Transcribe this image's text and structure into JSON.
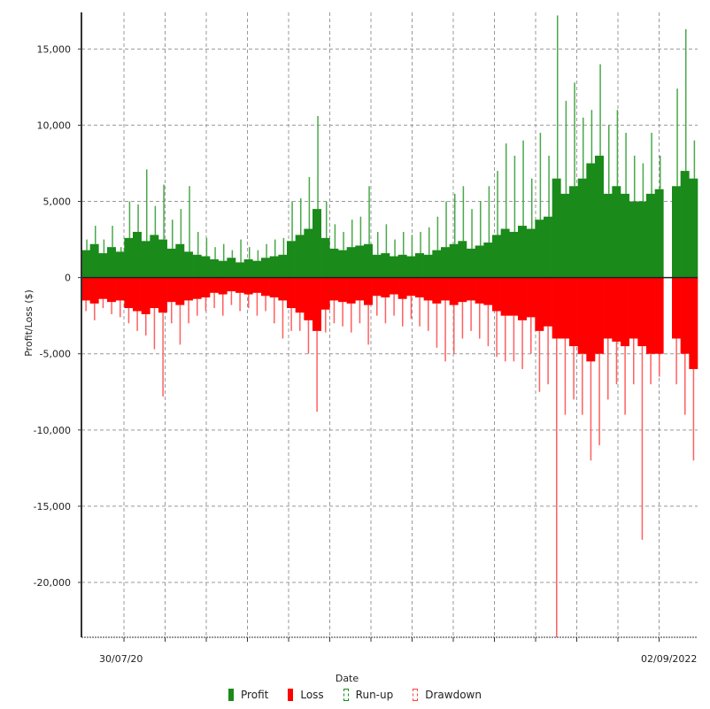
{
  "chart_data": {
    "type": "bar",
    "title": "",
    "xlabel": "Date",
    "ylabel": "Profit/Loss ($)",
    "ylim": [
      -23600,
      17400
    ],
    "yticks": [
      15000,
      10000,
      5000,
      0,
      -5000,
      -10000,
      -15000,
      -20000
    ],
    "ytick_labels": [
      "15,000",
      "10,000",
      "5,000",
      "0",
      "-5,000",
      "-10,000",
      "-15,000",
      "-20,000"
    ],
    "xtick_labels_visible": [
      "30/07/20",
      "02/09/2022"
    ],
    "grid": true,
    "legend_position": "bottom",
    "colors": {
      "profit": "#1a8a1a",
      "runup": "#4aa84a",
      "loss": "#ff0000",
      "drawdown": "#ff6060"
    },
    "series": [
      {
        "name": "Profit",
        "values": [
          1800,
          2200,
          1600,
          2000,
          1700,
          2600,
          3000,
          2400,
          2800,
          2500,
          1900,
          2200,
          1700,
          1500,
          1400,
          1200,
          1100,
          1300,
          1000,
          1200,
          1100,
          1300,
          1400,
          1500,
          2400,
          2800,
          3200,
          4500,
          2600,
          1900,
          1800,
          2000,
          2100,
          2200,
          1500,
          1600,
          1400,
          1500,
          1400,
          1600,
          1500,
          1800,
          2000,
          2200,
          2400,
          1900,
          2100,
          2300,
          2800,
          3200,
          3000,
          3400,
          3200,
          3800,
          4000,
          6500,
          5500,
          6000,
          6500,
          7500,
          8000,
          5500,
          6000,
          5500,
          5000,
          5000,
          5500,
          5800,
          0,
          6000,
          7000,
          6500
        ]
      },
      {
        "name": "Loss",
        "values": [
          -1500,
          -1700,
          -1400,
          -1600,
          -1500,
          -2000,
          -2200,
          -2400,
          -2000,
          -2300,
          -1600,
          -1800,
          -1500,
          -1400,
          -1300,
          -1000,
          -1100,
          -900,
          -1000,
          -1100,
          -1000,
          -1200,
          -1300,
          -1500,
          -2000,
          -2300,
          -2800,
          -3500,
          -2100,
          -1500,
          -1600,
          -1700,
          -1500,
          -1800,
          -1200,
          -1300,
          -1100,
          -1400,
          -1200,
          -1300,
          -1500,
          -1700,
          -1500,
          -1800,
          -1600,
          -1500,
          -1700,
          -1800,
          -2200,
          -2500,
          -2500,
          -2800,
          -2600,
          -3500,
          -3200,
          -4000,
          -4000,
          -4500,
          -5000,
          -5500,
          -5000,
          -4000,
          -4200,
          -4500,
          -4000,
          -4500,
          -5000,
          -5000,
          0,
          -4000,
          -5000,
          -6000
        ]
      },
      {
        "name": "Run-up",
        "values": [
          2500,
          3400,
          2500,
          3400,
          2000,
          5000,
          4800,
          7100,
          4700,
          6100,
          3800,
          4500,
          6000,
          3000,
          2600,
          2000,
          2200,
          1800,
          2500,
          2000,
          1800,
          2200,
          2500,
          2600,
          5000,
          5200,
          6600,
          10600,
          5000,
          3500,
          3000,
          3800,
          4000,
          6000,
          3000,
          3500,
          2500,
          3000,
          2800,
          3000,
          3300,
          4000,
          5000,
          5500,
          6000,
          4500,
          5000,
          6000,
          7000,
          8800,
          8000,
          9000,
          6500,
          9500,
          8000,
          17200,
          11600,
          12800,
          10500,
          11000,
          14000,
          10000,
          11000,
          9500,
          8000,
          7500,
          9500,
          8000,
          0,
          12400,
          16300,
          9000
        ]
      },
      {
        "name": "Drawdown",
        "values": [
          -2200,
          -2800,
          -2000,
          -2400,
          -2600,
          -3000,
          -3500,
          -3800,
          -4700,
          -7800,
          -3000,
          -4400,
          -3000,
          -2500,
          -2200,
          -2000,
          -2500,
          -1800,
          -2200,
          -2000,
          -2500,
          -2200,
          -3000,
          -4000,
          -3500,
          -3500,
          -5000,
          -8800,
          -3600,
          -3000,
          -3200,
          -3600,
          -3000,
          -4400,
          -2500,
          -3000,
          -2500,
          -3200,
          -2700,
          -3200,
          -3500,
          -4600,
          -5500,
          -5000,
          -4000,
          -3500,
          -4000,
          -4500,
          -5200,
          -5500,
          -5500,
          -6000,
          -5000,
          -7500,
          -7000,
          -23600,
          -9000,
          -8000,
          -9000,
          -12000,
          -11000,
          -8000,
          -7000,
          -9000,
          -7000,
          -17200,
          -7000,
          -6500,
          0,
          -7000,
          -9000,
          -12000
        ]
      }
    ]
  },
  "legend": {
    "profit": "Profit",
    "loss": "Loss",
    "runup": "Run-up",
    "drawdown": "Drawdown"
  }
}
